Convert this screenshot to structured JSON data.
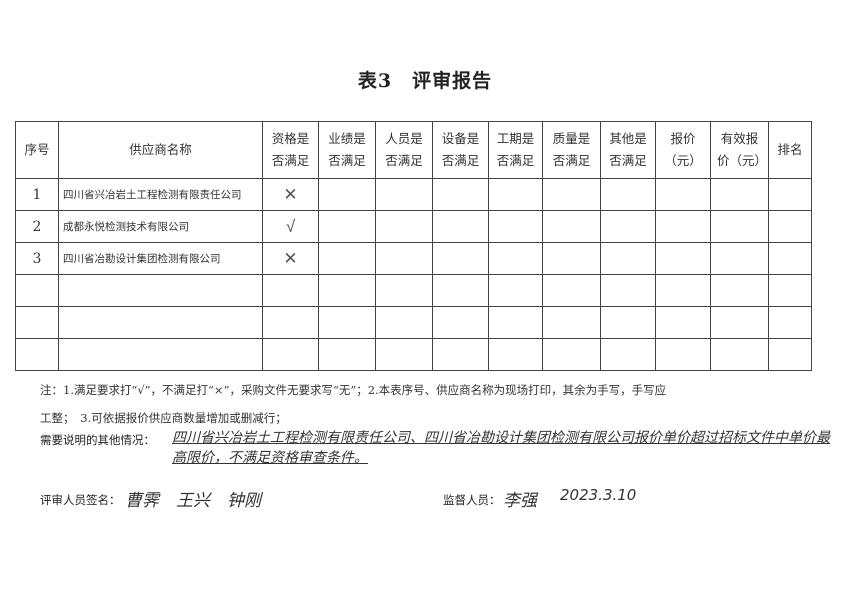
{
  "title": "表3　评审报告",
  "table": {
    "headers": [
      "序号",
      "供应商名称",
      "资格是否满足",
      "业绩是否满足",
      "人员是否满足",
      "设备是否满足",
      "工期是否满足",
      "质量是否满足",
      "其他是否满足",
      "报价（元）",
      "有效报价（元）",
      "排名"
    ],
    "rows": [
      {
        "no": "1",
        "name": "四川省兴冶岩土工程检测有限责任公司",
        "qualification": "✕"
      },
      {
        "no": "2",
        "name": "成都永悦检测技术有限公司",
        "qualification": "√"
      },
      {
        "no": "3",
        "name": "四川省冶勘设计集团检测有限公司",
        "qualification": "✕"
      }
    ],
    "empty_rows": 3
  },
  "notes": {
    "line1": "注：1.满足要求打“√”，不满足打“×”，采购文件无要求写“无”；2.本表序号、供应商名称为现场打印，其余为手写，手写应",
    "line2": "工整；　3.可依据报价供应商数量增加或删减行；"
  },
  "remarks": {
    "label": "需要说明的其他情况：",
    "text": "四川省兴冶岩土工程检测有限责任公司、四川省冶勘设计集团检测有限公司报价单价超过招标文件中单价最高限价，不满足资格审查条件。"
  },
  "signatures": {
    "reviewers_label": "评审人员签名：",
    "reviewers": "曹霁　王兴　钟刚",
    "supervisor_label": "监督人员：",
    "supervisor": "李强",
    "date": "2023.3.10"
  }
}
